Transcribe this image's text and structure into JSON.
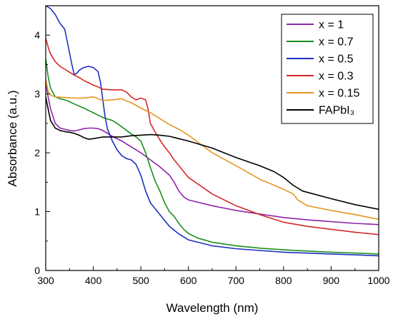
{
  "chart_data": {
    "type": "line",
    "xlabel": "Wavelength (nm)",
    "ylabel": "Absorbance (a.u.)",
    "xlim": [
      300,
      1000
    ],
    "ylim": [
      0,
      4.5
    ],
    "xticks": [
      300,
      400,
      500,
      600,
      700,
      800,
      900,
      1000
    ],
    "yticks": [
      0,
      1,
      2,
      3,
      4
    ],
    "grid": false,
    "legend_position": "top-right",
    "series": [
      {
        "name": "x = 1",
        "color": "#8e24aa",
        "points": [
          [
            300,
            3.2
          ],
          [
            305,
            2.95
          ],
          [
            310,
            2.75
          ],
          [
            320,
            2.5
          ],
          [
            330,
            2.42
          ],
          [
            340,
            2.4
          ],
          [
            350,
            2.38
          ],
          [
            360,
            2.37
          ],
          [
            370,
            2.39
          ],
          [
            380,
            2.41
          ],
          [
            390,
            2.42
          ],
          [
            400,
            2.42
          ],
          [
            410,
            2.41
          ],
          [
            420,
            2.38
          ],
          [
            430,
            2.33
          ],
          [
            440,
            2.28
          ],
          [
            460,
            2.2
          ],
          [
            480,
            2.1
          ],
          [
            500,
            2.0
          ],
          [
            520,
            1.88
          ],
          [
            540,
            1.76
          ],
          [
            560,
            1.62
          ],
          [
            570,
            1.5
          ],
          [
            580,
            1.35
          ],
          [
            590,
            1.25
          ],
          [
            600,
            1.2
          ],
          [
            650,
            1.1
          ],
          [
            700,
            1.02
          ],
          [
            750,
            0.96
          ],
          [
            800,
            0.9
          ],
          [
            850,
            0.86
          ],
          [
            900,
            0.83
          ],
          [
            950,
            0.8
          ],
          [
            1000,
            0.78
          ]
        ]
      },
      {
        "name": "x = 0.7",
        "color": "#1b8f1b",
        "points": [
          [
            300,
            3.6
          ],
          [
            305,
            3.3
          ],
          [
            310,
            3.1
          ],
          [
            320,
            2.95
          ],
          [
            330,
            2.92
          ],
          [
            340,
            2.9
          ],
          [
            350,
            2.87
          ],
          [
            360,
            2.83
          ],
          [
            380,
            2.76
          ],
          [
            400,
            2.68
          ],
          [
            420,
            2.6
          ],
          [
            440,
            2.55
          ],
          [
            450,
            2.5
          ],
          [
            460,
            2.44
          ],
          [
            470,
            2.38
          ],
          [
            480,
            2.32
          ],
          [
            490,
            2.27
          ],
          [
            500,
            2.2
          ],
          [
            510,
            2.0
          ],
          [
            520,
            1.75
          ],
          [
            530,
            1.52
          ],
          [
            540,
            1.35
          ],
          [
            550,
            1.15
          ],
          [
            560,
            1.0
          ],
          [
            570,
            0.92
          ],
          [
            580,
            0.8
          ],
          [
            590,
            0.7
          ],
          [
            600,
            0.63
          ],
          [
            620,
            0.55
          ],
          [
            650,
            0.48
          ],
          [
            700,
            0.42
          ],
          [
            750,
            0.38
          ],
          [
            800,
            0.35
          ],
          [
            850,
            0.33
          ],
          [
            900,
            0.31
          ],
          [
            1000,
            0.28
          ]
        ]
      },
      {
        "name": "x = 0.5",
        "color": "#1f2fbf",
        "points": [
          [
            300,
            4.5
          ],
          [
            310,
            4.45
          ],
          [
            315,
            4.4
          ],
          [
            320,
            4.35
          ],
          [
            330,
            4.2
          ],
          [
            340,
            4.1
          ],
          [
            345,
            3.9
          ],
          [
            350,
            3.7
          ],
          [
            355,
            3.5
          ],
          [
            360,
            3.33
          ],
          [
            365,
            3.35
          ],
          [
            370,
            3.4
          ],
          [
            380,
            3.45
          ],
          [
            390,
            3.47
          ],
          [
            400,
            3.45
          ],
          [
            410,
            3.38
          ],
          [
            415,
            3.2
          ],
          [
            420,
            2.9
          ],
          [
            425,
            2.6
          ],
          [
            430,
            2.4
          ],
          [
            440,
            2.2
          ],
          [
            450,
            2.05
          ],
          [
            460,
            1.95
          ],
          [
            470,
            1.9
          ],
          [
            480,
            1.88
          ],
          [
            490,
            1.8
          ],
          [
            500,
            1.62
          ],
          [
            510,
            1.35
          ],
          [
            520,
            1.15
          ],
          [
            530,
            1.05
          ],
          [
            540,
            0.95
          ],
          [
            550,
            0.85
          ],
          [
            560,
            0.75
          ],
          [
            580,
            0.62
          ],
          [
            600,
            0.52
          ],
          [
            650,
            0.42
          ],
          [
            700,
            0.37
          ],
          [
            750,
            0.34
          ],
          [
            800,
            0.31
          ],
          [
            900,
            0.28
          ],
          [
            1000,
            0.25
          ]
        ]
      },
      {
        "name": "x = 0.3",
        "color": "#d62728",
        "points": [
          [
            300,
            3.95
          ],
          [
            305,
            3.8
          ],
          [
            310,
            3.68
          ],
          [
            320,
            3.55
          ],
          [
            330,
            3.47
          ],
          [
            340,
            3.42
          ],
          [
            350,
            3.37
          ],
          [
            360,
            3.32
          ],
          [
            370,
            3.28
          ],
          [
            380,
            3.23
          ],
          [
            390,
            3.19
          ],
          [
            400,
            3.15
          ],
          [
            410,
            3.12
          ],
          [
            420,
            3.08
          ],
          [
            440,
            3.07
          ],
          [
            460,
            3.07
          ],
          [
            470,
            3.03
          ],
          [
            480,
            2.95
          ],
          [
            490,
            2.9
          ],
          [
            500,
            2.93
          ],
          [
            510,
            2.9
          ],
          [
            515,
            2.75
          ],
          [
            520,
            2.5
          ],
          [
            530,
            2.35
          ],
          [
            540,
            2.22
          ],
          [
            550,
            2.1
          ],
          [
            560,
            2.0
          ],
          [
            570,
            1.88
          ],
          [
            580,
            1.78
          ],
          [
            590,
            1.68
          ],
          [
            600,
            1.58
          ],
          [
            650,
            1.3
          ],
          [
            700,
            1.1
          ],
          [
            750,
            0.95
          ],
          [
            800,
            0.82
          ],
          [
            850,
            0.75
          ],
          [
            900,
            0.7
          ],
          [
            950,
            0.65
          ],
          [
            1000,
            0.61
          ]
        ]
      },
      {
        "name": "x = 0.15",
        "color": "#e69522",
        "points": [
          [
            300,
            3.25
          ],
          [
            305,
            3.05
          ],
          [
            310,
            2.98
          ],
          [
            320,
            2.95
          ],
          [
            340,
            2.94
          ],
          [
            360,
            2.93
          ],
          [
            380,
            2.93
          ],
          [
            390,
            2.94
          ],
          [
            400,
            2.95
          ],
          [
            410,
            2.92
          ],
          [
            420,
            2.89
          ],
          [
            440,
            2.9
          ],
          [
            460,
            2.92
          ],
          [
            470,
            2.88
          ],
          [
            480,
            2.85
          ],
          [
            500,
            2.76
          ],
          [
            520,
            2.68
          ],
          [
            540,
            2.58
          ],
          [
            560,
            2.48
          ],
          [
            580,
            2.4
          ],
          [
            600,
            2.3
          ],
          [
            650,
            2.0
          ],
          [
            700,
            1.78
          ],
          [
            750,
            1.55
          ],
          [
            800,
            1.38
          ],
          [
            820,
            1.3
          ],
          [
            830,
            1.2
          ],
          [
            850,
            1.1
          ],
          [
            900,
            1.02
          ],
          [
            950,
            0.95
          ],
          [
            1000,
            0.87
          ]
        ]
      },
      {
        "name": "FAPbI3",
        "legend_label": "FAPbI₃",
        "color": "#000000",
        "points": [
          [
            300,
            2.95
          ],
          [
            305,
            2.75
          ],
          [
            310,
            2.55
          ],
          [
            320,
            2.42
          ],
          [
            330,
            2.38
          ],
          [
            340,
            2.36
          ],
          [
            350,
            2.35
          ],
          [
            360,
            2.33
          ],
          [
            370,
            2.3
          ],
          [
            380,
            2.26
          ],
          [
            390,
            2.23
          ],
          [
            400,
            2.24
          ],
          [
            420,
            2.27
          ],
          [
            440,
            2.27
          ],
          [
            460,
            2.27
          ],
          [
            480,
            2.29
          ],
          [
            500,
            2.3
          ],
          [
            520,
            2.31
          ],
          [
            540,
            2.3
          ],
          [
            560,
            2.28
          ],
          [
            580,
            2.24
          ],
          [
            600,
            2.2
          ],
          [
            650,
            2.08
          ],
          [
            700,
            1.92
          ],
          [
            750,
            1.78
          ],
          [
            780,
            1.68
          ],
          [
            800,
            1.58
          ],
          [
            820,
            1.45
          ],
          [
            840,
            1.35
          ],
          [
            900,
            1.22
          ],
          [
            950,
            1.12
          ],
          [
            1000,
            1.04
          ]
        ]
      }
    ]
  }
}
